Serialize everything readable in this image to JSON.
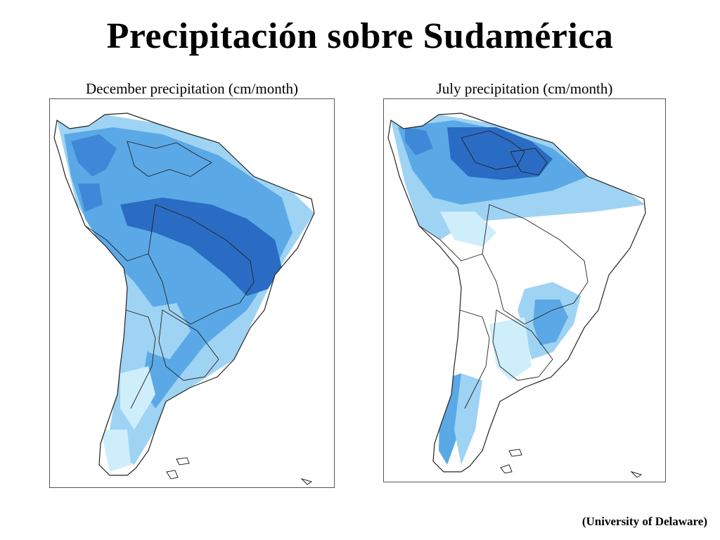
{
  "title": "Precipitación sobre Sudamérica",
  "maps": [
    {
      "caption": "December precipitation (cm/month)",
      "month": "December"
    },
    {
      "caption": "July precipitation (cm/month)",
      "month": "July"
    }
  ],
  "colors": {
    "very_light": "#cfeefb",
    "light": "#9fd3f3",
    "medium": "#5aa9e6",
    "strong": "#3f88d8",
    "dark": "#2a6cc4",
    "outline": "#222222"
  },
  "credit": "(University of Delaware)"
}
